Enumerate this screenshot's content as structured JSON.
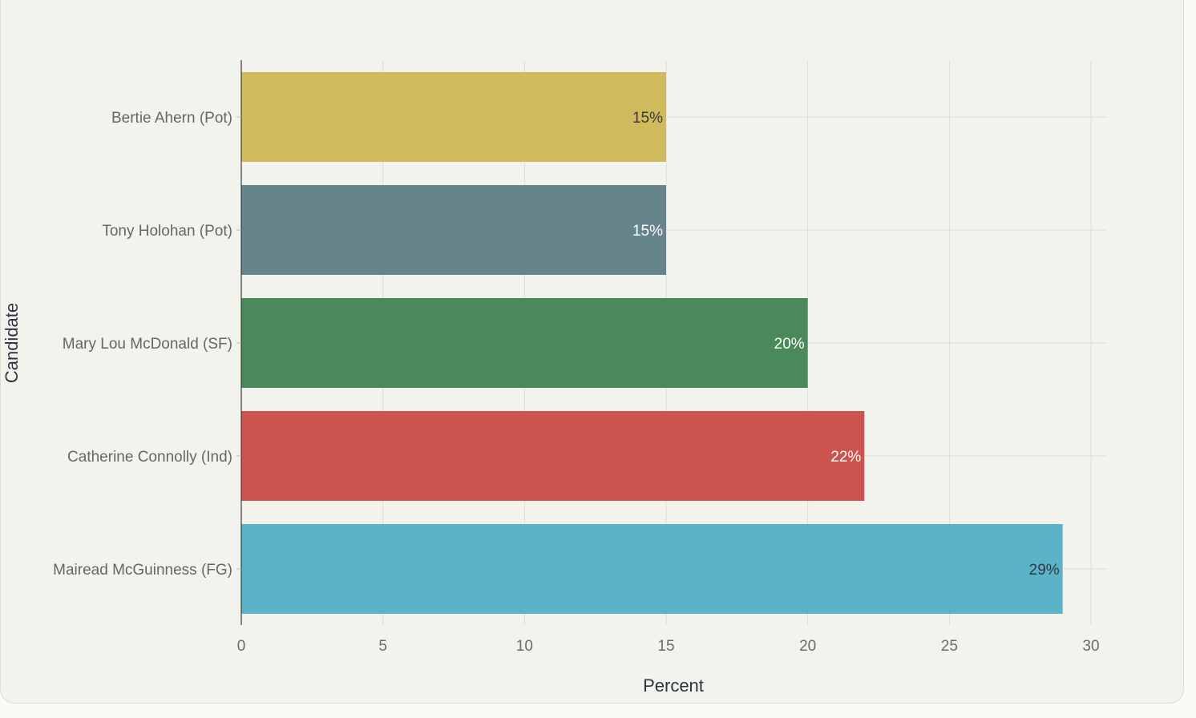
{
  "chart_data": {
    "type": "bar",
    "orientation": "horizontal",
    "categories": [
      "Bertie Ahern (Pot)",
      "Tony Holohan (Pot)",
      "Mary Lou McDonald (SF)",
      "Catherine Connolly (Ind)",
      "Mairead McGuinness (FG)"
    ],
    "values": [
      15,
      15,
      20,
      22,
      29
    ],
    "data_labels": [
      "15%",
      "15%",
      "20%",
      "22%",
      "29%"
    ],
    "colors": [
      "#cfbb5c",
      "#65858b",
      "#4a895a",
      "#cc534e",
      "#5bb3c9"
    ],
    "label_colors": [
      "#3a3a3a",
      "#ffffff",
      "#ffffff",
      "#ffffff",
      "#2f3a3f"
    ],
    "xlabel": "Percent",
    "ylabel": "Candidate",
    "xlim": [
      0,
      30
    ],
    "xticks": [
      0,
      5,
      10,
      15,
      20,
      25,
      30
    ],
    "grid": true,
    "legend": "none"
  }
}
